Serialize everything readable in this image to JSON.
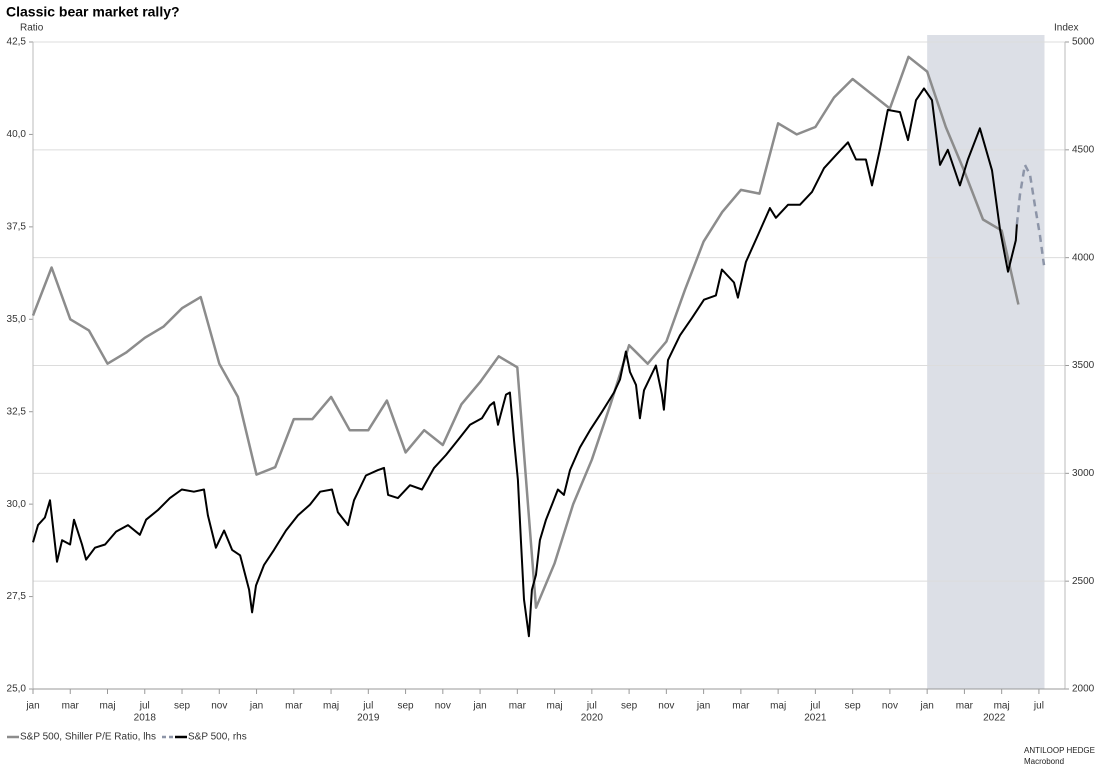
{
  "chart_data": {
    "type": "line",
    "title": "Classic bear market rally?",
    "ylabel": "Ratio",
    "y2label": "Index",
    "source": [
      "ANTILOOP HEDGE",
      "Macrobond"
    ],
    "xlim": [
      0,
      55.4
    ],
    "xticks": [
      {
        "value": 0,
        "label": "jan"
      },
      {
        "value": 2,
        "label": "mar"
      },
      {
        "value": 4,
        "label": "maj"
      },
      {
        "value": 6,
        "label": "jul"
      },
      {
        "value": 8,
        "label": "sep"
      },
      {
        "value": 10,
        "label": "nov"
      },
      {
        "value": 12,
        "label": "jan"
      },
      {
        "value": 14,
        "label": "mar"
      },
      {
        "value": 16,
        "label": "maj"
      },
      {
        "value": 18,
        "label": "jul"
      },
      {
        "value": 20,
        "label": "sep"
      },
      {
        "value": 22,
        "label": "nov"
      },
      {
        "value": 24,
        "label": "jan"
      },
      {
        "value": 26,
        "label": "mar"
      },
      {
        "value": 28,
        "label": "maj"
      },
      {
        "value": 30,
        "label": "jul"
      },
      {
        "value": 32,
        "label": "sep"
      },
      {
        "value": 34,
        "label": "nov"
      },
      {
        "value": 36,
        "label": "jan"
      },
      {
        "value": 38,
        "label": "mar"
      },
      {
        "value": 40,
        "label": "maj"
      },
      {
        "value": 42,
        "label": "jul"
      },
      {
        "value": 44,
        "label": "sep"
      },
      {
        "value": 46,
        "label": "nov"
      },
      {
        "value": 48,
        "label": "jan"
      },
      {
        "value": 50,
        "label": "mar"
      },
      {
        "value": 52,
        "label": "maj"
      },
      {
        "value": 54,
        "label": "jul"
      }
    ],
    "year_labels": [
      {
        "value": 6,
        "label": "2018"
      },
      {
        "value": 18,
        "label": "2019"
      },
      {
        "value": 30,
        "label": "2020"
      },
      {
        "value": 42,
        "label": "2021"
      },
      {
        "value": 51.6,
        "label": "2022"
      }
    ],
    "ylim": [
      25,
      42.5
    ],
    "yticks": [
      {
        "value": 25,
        "label": "25,0"
      },
      {
        "value": 27.5,
        "label": "27,5"
      },
      {
        "value": 30,
        "label": "30,0"
      },
      {
        "value": 32.5,
        "label": "32,5"
      },
      {
        "value": 35,
        "label": "35,0"
      },
      {
        "value": 37.5,
        "label": "37,5"
      },
      {
        "value": 40,
        "label": "40,0"
      },
      {
        "value": 42.5,
        "label": "42,5"
      }
    ],
    "y2lim": [
      2000,
      5000
    ],
    "y2ticks": [
      2000,
      2500,
      3000,
      3500,
      4000,
      4500,
      5000
    ],
    "grid": "y2",
    "shade": [
      48,
      54.3
    ],
    "legend": "bottom-left",
    "series": [
      {
        "name": "S&P 500, Shiller P/E Ratio, lhs",
        "color": "#8c8c8c",
        "axis": "y",
        "x": [
          0,
          1,
          2,
          3,
          4,
          5,
          6,
          7,
          8,
          9,
          10,
          11,
          12,
          13,
          14,
          15,
          16,
          17,
          18,
          19,
          20,
          21,
          22,
          23,
          24,
          25,
          26,
          27,
          28,
          29,
          30,
          31,
          32,
          33,
          34,
          35,
          36,
          37,
          38,
          39,
          40,
          41,
          42,
          43,
          44,
          45,
          46,
          47,
          48,
          49,
          50,
          51,
          52,
          52.9
        ],
        "values": [
          35.1,
          36.4,
          35.0,
          34.7,
          33.8,
          34.1,
          34.5,
          34.8,
          35.3,
          35.6,
          33.8,
          32.9,
          30.8,
          31.0,
          32.3,
          32.3,
          32.9,
          32.0,
          32.0,
          32.8,
          31.4,
          32.0,
          31.6,
          32.7,
          33.3,
          34.0,
          33.7,
          27.2,
          28.4,
          30.0,
          31.2,
          32.7,
          34.3,
          33.8,
          34.4,
          35.8,
          37.1,
          37.9,
          38.5,
          38.4,
          40.3,
          40.0,
          40.2,
          41.0,
          41.5,
          41.1,
          40.7,
          42.1,
          41.7,
          40.2,
          39.0,
          37.7,
          37.4,
          35.4
        ]
      },
      {
        "name": "S&P 500, rhs",
        "color": "#000000",
        "axis": "y2",
        "x": [
          0,
          0.27,
          0.64,
          0.91,
          1.29,
          1.56,
          1.99,
          2.2,
          2.63,
          2.85,
          3.33,
          3.87,
          4.46,
          5.1,
          5.74,
          6.07,
          6.71,
          7.35,
          7.99,
          8.64,
          9.18,
          9.39,
          9.82,
          10.26,
          10.69,
          11.12,
          11.6,
          11.76,
          11.97,
          12.4,
          12.94,
          13.58,
          14.22,
          14.87,
          15.41,
          16.05,
          16.37,
          16.91,
          17.23,
          17.87,
          18.52,
          18.84,
          19.06,
          19.59,
          20.24,
          20.88,
          21.53,
          22.17,
          22.82,
          23.46,
          24.1,
          24.53,
          24.75,
          24.96,
          25.39,
          25.6,
          25.82,
          26.03,
          26.19,
          26.36,
          26.62,
          26.78,
          27,
          27.21,
          27.54,
          27.86,
          28.18,
          28.5,
          28.83,
          29.36,
          29.9,
          30.54,
          31.19,
          31.51,
          31.83,
          32.05,
          32.37,
          32.58,
          32.8,
          33.44,
          33.76,
          33.87,
          34.09,
          34.73,
          35.37,
          36.02,
          36.66,
          36.98,
          37.63,
          37.84,
          38.27,
          38.92,
          39.56,
          39.88,
          40.53,
          41.17,
          41.82,
          42.46,
          43.1,
          43.75,
          44.18,
          44.71,
          45.04,
          45.46,
          45.89,
          46.54,
          46.97,
          47.4,
          47.83,
          48.26,
          48.69,
          49.11,
          49.76,
          50.19,
          50.83,
          51.48,
          51.91,
          52.34,
          52.76,
          52.82
        ],
        "values": [
          2680,
          2760,
          2795,
          2875,
          2590,
          2690,
          2670,
          2785,
          2670,
          2600,
          2655,
          2670,
          2730,
          2760,
          2715,
          2785,
          2830,
          2885,
          2925,
          2915,
          2925,
          2805,
          2655,
          2735,
          2645,
          2620,
          2460,
          2355,
          2480,
          2575,
          2645,
          2735,
          2805,
          2855,
          2915,
          2925,
          2820,
          2760,
          2875,
          2990,
          3015,
          3025,
          2900,
          2885,
          2945,
          2925,
          3025,
          3085,
          3155,
          3225,
          3255,
          3315,
          3330,
          3225,
          3365,
          3375,
          3155,
          2970,
          2690,
          2415,
          2245,
          2460,
          2530,
          2690,
          2785,
          2855,
          2925,
          2900,
          3015,
          3120,
          3200,
          3285,
          3375,
          3435,
          3565,
          3470,
          3410,
          3255,
          3385,
          3500,
          3365,
          3295,
          3525,
          3640,
          3720,
          3805,
          3825,
          3945,
          3885,
          3815,
          3980,
          4105,
          4230,
          4185,
          4245,
          4245,
          4305,
          4415,
          4475,
          4535,
          4455,
          4455,
          4335,
          4500,
          4685,
          4675,
          4545,
          4730,
          4785,
          4730,
          4430,
          4500,
          4335,
          4455,
          4600,
          4405,
          4130,
          3935,
          4080,
          4155
        ]
      },
      {
        "color": "#8d95a8",
        "axis": "y2",
        "dashed": true,
        "x": [
          52.82,
          52.98,
          53.25,
          53.52,
          53.78,
          54.05,
          54.27
        ],
        "values": [
          4155,
          4290,
          4430,
          4385,
          4245,
          4105,
          3965
        ]
      }
    ]
  }
}
